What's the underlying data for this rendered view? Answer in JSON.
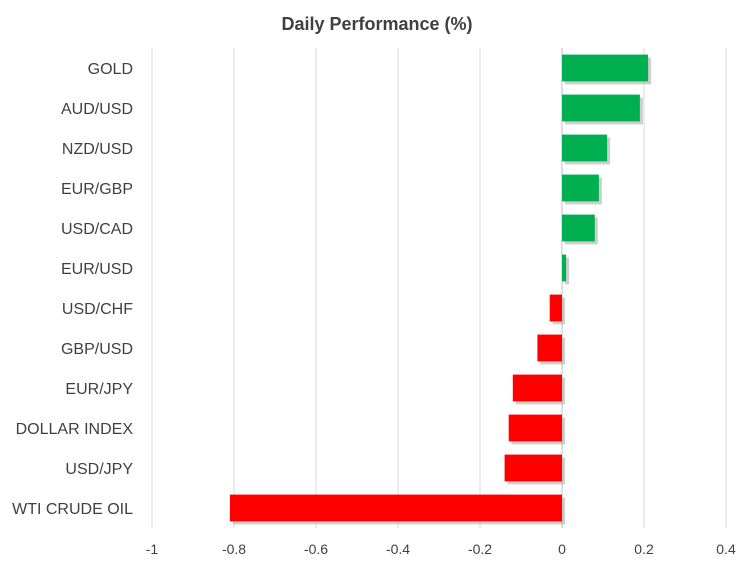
{
  "chart_data": {
    "type": "bar",
    "orientation": "horizontal",
    "title": "Daily Performance  (%)",
    "xlabel": "",
    "ylabel": "",
    "xlim": [
      -1,
      0.4
    ],
    "x_ticks": [
      "-1",
      "-0.8",
      "-0.6",
      "-0.4",
      "-0.2",
      "0",
      "0.2",
      "0.4"
    ],
    "grid": "vertical",
    "legend": "none",
    "categories": [
      "GOLD",
      "AUD/USD",
      "NZD/USD",
      "EUR/GBP",
      "USD/CAD",
      "EUR/USD",
      "USD/CHF",
      "GBP/USD",
      "EUR/JPY",
      "DOLLAR INDEX",
      "USD/JPY",
      "WTI CRUDE OIL"
    ],
    "values": [
      0.21,
      0.19,
      0.11,
      0.09,
      0.08,
      0.01,
      -0.03,
      -0.06,
      -0.12,
      -0.13,
      -0.14,
      -0.81
    ],
    "colors": {
      "positive": "#00b050",
      "negative": "#ff0000",
      "shadow": "#a6a6a6"
    }
  }
}
